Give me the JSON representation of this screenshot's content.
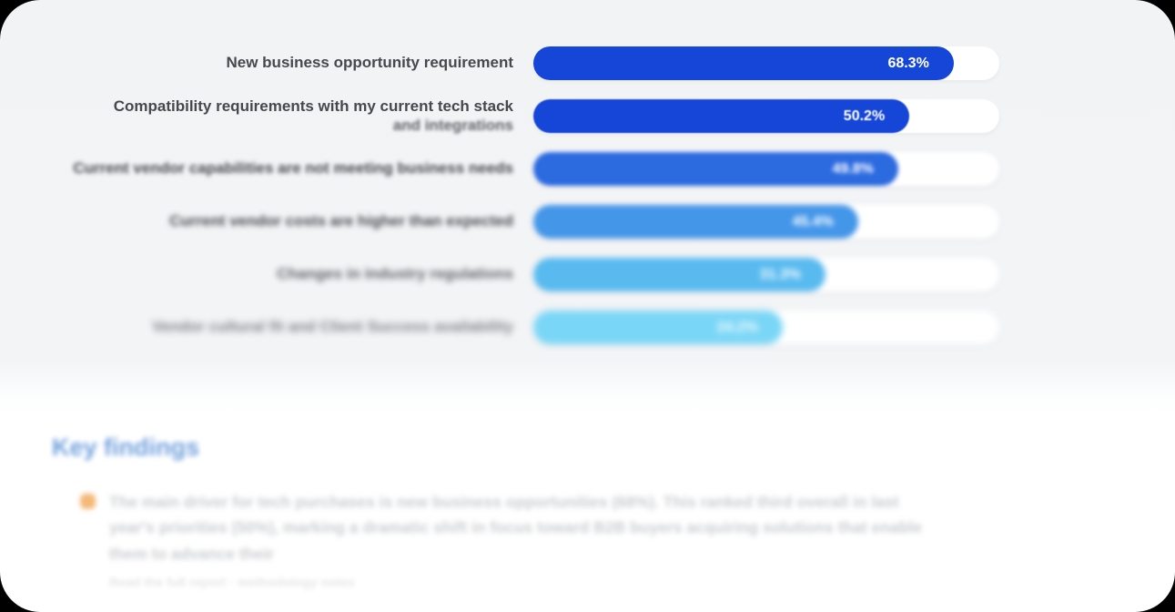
{
  "chart_data": {
    "type": "bar",
    "orientation": "horizontal",
    "title": "",
    "xlabel": "",
    "ylabel": "",
    "xlim": [
      0,
      100
    ],
    "grid": false,
    "legend": false,
    "categories": [
      "New business opportunity requirement",
      "Compatibility requirements with my current tech stack\nand integrations",
      "Current vendor capabilities are not meeting business needs",
      "Current vendor costs are higher than expected",
      "Changes in industry regulations",
      "Vendor cultural fit and Client Success availability"
    ],
    "values": [
      68.3,
      50.2,
      49.8,
      45.4,
      31.3,
      24.2
    ],
    "value_labels": [
      "68.3%",
      "50.2%",
      "49.8%",
      "45.4%",
      "31.3%",
      "24.2%"
    ],
    "bar_colors": [
      "#1546d8",
      "#1546d8",
      "#2c6ae0",
      "#4496e9",
      "#58baef",
      "#79d6f6"
    ],
    "track_color": "#ffffff",
    "value_label_color": "#ffffff",
    "label_color": "#46484d",
    "layout": {
      "labels_position": "left",
      "values_position": "inside-right",
      "bar_width_pcts": [
        90.2,
        80.7,
        78.3,
        69.7,
        62.7,
        53.5
      ],
      "blurred_rows": [
        3,
        4,
        5,
        6
      ]
    }
  },
  "key_findings": {
    "title": "Key findings",
    "title_color": "#4d89d4",
    "bullet_color": "#f0a24a",
    "paragraph": "The main driver for tech purchases is new business opportunities (68%). This ranked third overall in last year's priorities (50%), marking a dramatic shift in focus toward B2B buyers acquiring solutions that enable them to advance their",
    "note": "Read the full report · methodology notes"
  }
}
